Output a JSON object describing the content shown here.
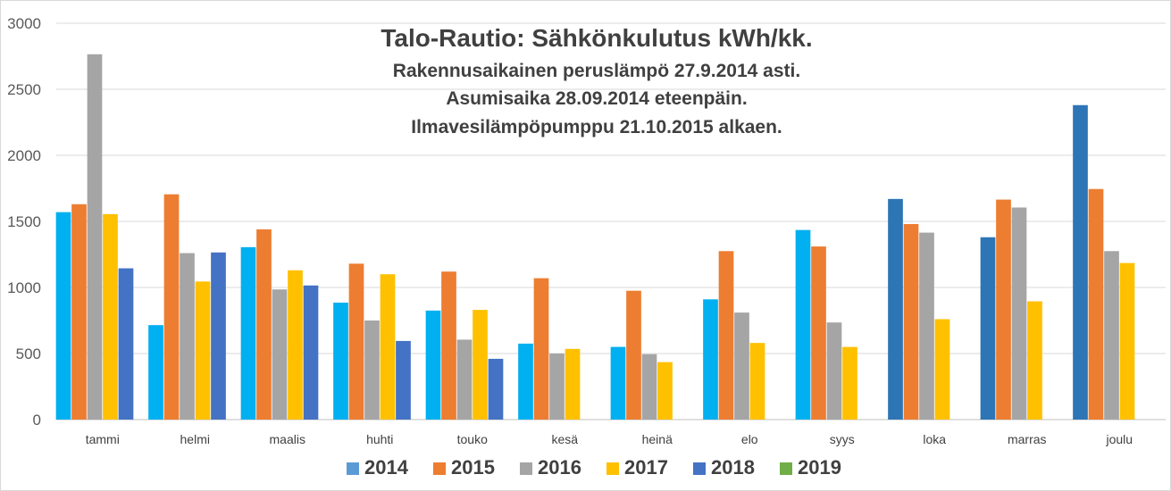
{
  "chart_data": {
    "type": "bar",
    "title_lines": [
      "Talo-Rautio: Sähkönkulutus kWh/kk.",
      "Rakennusaikainen peruslämpö 27.9.2014 asti.",
      "Asumisaika 28.09.2014 eteenpäin.",
      "Ilmavesilämpöpumppu 21.10.2015 alkaen."
    ],
    "categories": [
      "tammi",
      "helmi",
      "maalis",
      "huhti",
      "touko",
      "kesä",
      "heinä",
      "elo",
      "syys",
      "loka",
      "marras",
      "joulu"
    ],
    "ylim": [
      0,
      3000
    ],
    "yticks": [
      0,
      500,
      1000,
      1500,
      2000,
      2500,
      3000
    ],
    "grid": true,
    "legend_position": "bottom",
    "series": [
      {
        "name": "2014",
        "color": "#00B0F0",
        "legend_color": "#5B9BD5",
        "values": [
          1570,
          715,
          1305,
          885,
          825,
          575,
          550,
          910,
          1435,
          null,
          null,
          null
        ],
        "alt_color": "#2E75B6",
        "alt_from_index": 9,
        "alt_values": [
          null,
          null,
          null,
          null,
          null,
          null,
          null,
          null,
          null,
          1670,
          1380,
          2380
        ]
      },
      {
        "name": "2015",
        "color": "#ED7D31",
        "values": [
          1630,
          1705,
          1440,
          1180,
          1120,
          1070,
          975,
          1275,
          1310,
          1480,
          1665,
          1745
        ]
      },
      {
        "name": "2016",
        "color": "#A5A5A5",
        "values": [
          2765,
          1260,
          985,
          750,
          605,
          500,
          495,
          810,
          735,
          1415,
          1605,
          1275
        ]
      },
      {
        "name": "2017",
        "color": "#FFC000",
        "values": [
          1555,
          1045,
          1130,
          1100,
          830,
          535,
          435,
          580,
          550,
          760,
          895,
          1185
        ]
      },
      {
        "name": "2018",
        "color": "#4472C4",
        "values": [
          1145,
          1265,
          1015,
          595,
          460,
          null,
          null,
          null,
          null,
          null,
          null,
          null
        ]
      },
      {
        "name": "2019",
        "color": "#70AD47",
        "values": [
          null,
          null,
          null,
          null,
          null,
          null,
          null,
          null,
          null,
          null,
          null,
          null
        ]
      }
    ]
  }
}
